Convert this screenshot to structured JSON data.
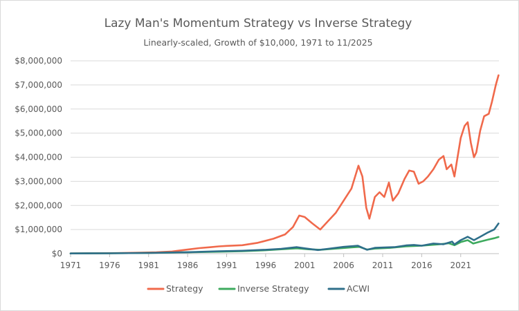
{
  "chart_data": {
    "type": "line",
    "title": "Lazy Man's Momentum Strategy vs Inverse Strategy",
    "subtitle": "Linearly-scaled, Growth of $10,000, 1971 to 11/2025",
    "xlabel": "",
    "ylabel": "",
    "xlim": [
      1971,
      2025.9
    ],
    "ylim": [
      0,
      8000000
    ],
    "x_ticks": [
      1971,
      1976,
      1981,
      1986,
      1991,
      1996,
      2001,
      2006,
      2011,
      2016,
      2021
    ],
    "x_tick_labels": [
      "1971",
      "1976",
      "1981",
      "1986",
      "1991",
      "1996",
      "2001",
      "2006",
      "2011",
      "2016",
      "2021"
    ],
    "y_ticks": [
      0,
      1000000,
      2000000,
      3000000,
      4000000,
      5000000,
      6000000,
      7000000,
      8000000
    ],
    "y_tick_labels": [
      "$0",
      "$1,000,000",
      "$2,000,000",
      "$3,000,000",
      "$4,000,000",
      "$5,000,000",
      "$6,000,000",
      "$7,000,000",
      "$8,000,000"
    ],
    "grid": true,
    "legend_position": "bottom",
    "series": [
      {
        "name": "Strategy",
        "color": "#f0694b",
        "points": [
          [
            1971,
            10000
          ],
          [
            1974,
            13000
          ],
          [
            1977,
            22000
          ],
          [
            1980,
            40000
          ],
          [
            1982,
            55000
          ],
          [
            1984,
            90000
          ],
          [
            1986,
            170000
          ],
          [
            1987.5,
            230000
          ],
          [
            1989,
            270000
          ],
          [
            1990,
            300000
          ],
          [
            1991,
            320000
          ],
          [
            1993,
            350000
          ],
          [
            1995,
            450000
          ],
          [
            1997,
            620000
          ],
          [
            1998.5,
            800000
          ],
          [
            1999.5,
            1100000
          ],
          [
            2000.3,
            1580000
          ],
          [
            2001,
            1520000
          ],
          [
            2002,
            1250000
          ],
          [
            2003,
            1000000
          ],
          [
            2004,
            1350000
          ],
          [
            2005,
            1700000
          ],
          [
            2006,
            2200000
          ],
          [
            2007,
            2700000
          ],
          [
            2007.9,
            3650000
          ],
          [
            2008.4,
            3200000
          ],
          [
            2008.9,
            1900000
          ],
          [
            2009.3,
            1450000
          ],
          [
            2010,
            2350000
          ],
          [
            2010.6,
            2550000
          ],
          [
            2011.2,
            2350000
          ],
          [
            2011.8,
            2950000
          ],
          [
            2012.3,
            2200000
          ],
          [
            2013,
            2500000
          ],
          [
            2013.8,
            3100000
          ],
          [
            2014.4,
            3450000
          ],
          [
            2015,
            3400000
          ],
          [
            2015.6,
            2900000
          ],
          [
            2016.2,
            3000000
          ],
          [
            2016.8,
            3200000
          ],
          [
            2017.5,
            3500000
          ],
          [
            2018.2,
            3900000
          ],
          [
            2018.8,
            4050000
          ],
          [
            2019.2,
            3500000
          ],
          [
            2019.8,
            3700000
          ],
          [
            2020.2,
            3200000
          ],
          [
            2020.6,
            4000000
          ],
          [
            2021,
            4800000
          ],
          [
            2021.5,
            5300000
          ],
          [
            2021.9,
            5450000
          ],
          [
            2022.3,
            4600000
          ],
          [
            2022.7,
            4000000
          ],
          [
            2023,
            4200000
          ],
          [
            2023.5,
            5100000
          ],
          [
            2024,
            5700000
          ],
          [
            2024.6,
            5800000
          ],
          [
            2025,
            6300000
          ],
          [
            2025.5,
            7000000
          ],
          [
            2025.85,
            7400000
          ]
        ]
      },
      {
        "name": "Inverse Strategy",
        "color": "#3daa5e",
        "points": [
          [
            1971,
            10000
          ],
          [
            1976,
            14000
          ],
          [
            1981,
            28000
          ],
          [
            1986,
            55000
          ],
          [
            1990,
            80000
          ],
          [
            1993,
            100000
          ],
          [
            1996,
            140000
          ],
          [
            1998,
            180000
          ],
          [
            2000,
            220000
          ],
          [
            2001.5,
            180000
          ],
          [
            2003,
            160000
          ],
          [
            2005,
            210000
          ],
          [
            2007,
            260000
          ],
          [
            2008,
            280000
          ],
          [
            2009,
            170000
          ],
          [
            2010,
            210000
          ],
          [
            2012,
            240000
          ],
          [
            2014,
            300000
          ],
          [
            2016,
            330000
          ],
          [
            2018,
            380000
          ],
          [
            2019.5,
            430000
          ],
          [
            2020.2,
            350000
          ],
          [
            2021,
            480000
          ],
          [
            2021.9,
            560000
          ],
          [
            2022.6,
            420000
          ],
          [
            2023.5,
            500000
          ],
          [
            2024.5,
            580000
          ],
          [
            2025.3,
            640000
          ],
          [
            2025.85,
            690000
          ]
        ]
      },
      {
        "name": "ACWI",
        "color": "#2e6f8a",
        "points": [
          [
            1971,
            10000
          ],
          [
            1976,
            15000
          ],
          [
            1981,
            30000
          ],
          [
            1986,
            60000
          ],
          [
            1990,
            100000
          ],
          [
            1993,
            120000
          ],
          [
            1996,
            160000
          ],
          [
            1998,
            200000
          ],
          [
            2000,
            270000
          ],
          [
            2001,
            220000
          ],
          [
            2002.7,
            150000
          ],
          [
            2004,
            200000
          ],
          [
            2006,
            280000
          ],
          [
            2007.8,
            330000
          ],
          [
            2009,
            160000
          ],
          [
            2010,
            240000
          ],
          [
            2011.5,
            260000
          ],
          [
            2012.5,
            270000
          ],
          [
            2014,
            340000
          ],
          [
            2015,
            360000
          ],
          [
            2016,
            330000
          ],
          [
            2017.5,
            420000
          ],
          [
            2018.8,
            390000
          ],
          [
            2019.9,
            500000
          ],
          [
            2020.2,
            380000
          ],
          [
            2021,
            560000
          ],
          [
            2021.9,
            700000
          ],
          [
            2022.7,
            560000
          ],
          [
            2023.5,
            700000
          ],
          [
            2024.5,
            880000
          ],
          [
            2025.3,
            1000000
          ],
          [
            2025.85,
            1250000
          ]
        ]
      }
    ]
  }
}
